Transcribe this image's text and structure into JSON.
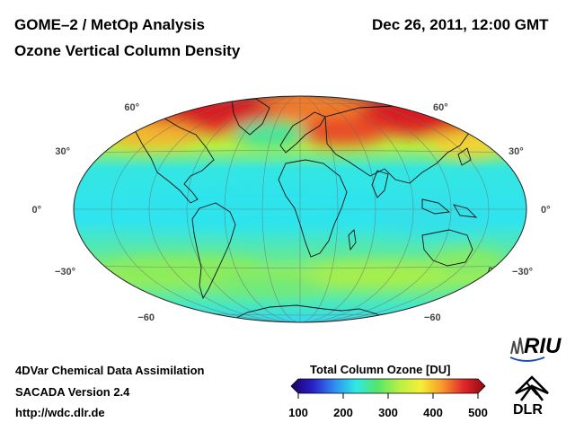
{
  "header": {
    "title_left": "GOME–2 / MetOp Analysis",
    "title_right": "Dec 26, 2011, 12:00 GMT",
    "subtitle": "Ozone Vertical Column Density"
  },
  "map": {
    "projection": "Hammer-Aitoff",
    "lat_labels_left": [
      "60°",
      "30°",
      "0°",
      "−30°",
      "−60"
    ],
    "lat_labels_right": [
      "60°",
      "30°",
      "0°",
      "−30°",
      "−60"
    ]
  },
  "colorbar": {
    "title": "Total Column Ozone [DU]",
    "ticks": [
      "100",
      "200",
      "300",
      "400",
      "500"
    ],
    "range": [
      100,
      500
    ],
    "colors": [
      "#1a0060",
      "#2a20c8",
      "#2f8cf0",
      "#2ee8e6",
      "#54e66b",
      "#b6f044",
      "#f6ef36",
      "#f79a2a",
      "#e3262c",
      "#8a0a10"
    ]
  },
  "footer": {
    "line1": "4DVar Chemical Data Assimilation",
    "line2": "SACADA Version 2.4",
    "line3": "http://wdc.dlr.de"
  },
  "logos": {
    "riu": "RIU",
    "dlr": "DLR"
  }
}
